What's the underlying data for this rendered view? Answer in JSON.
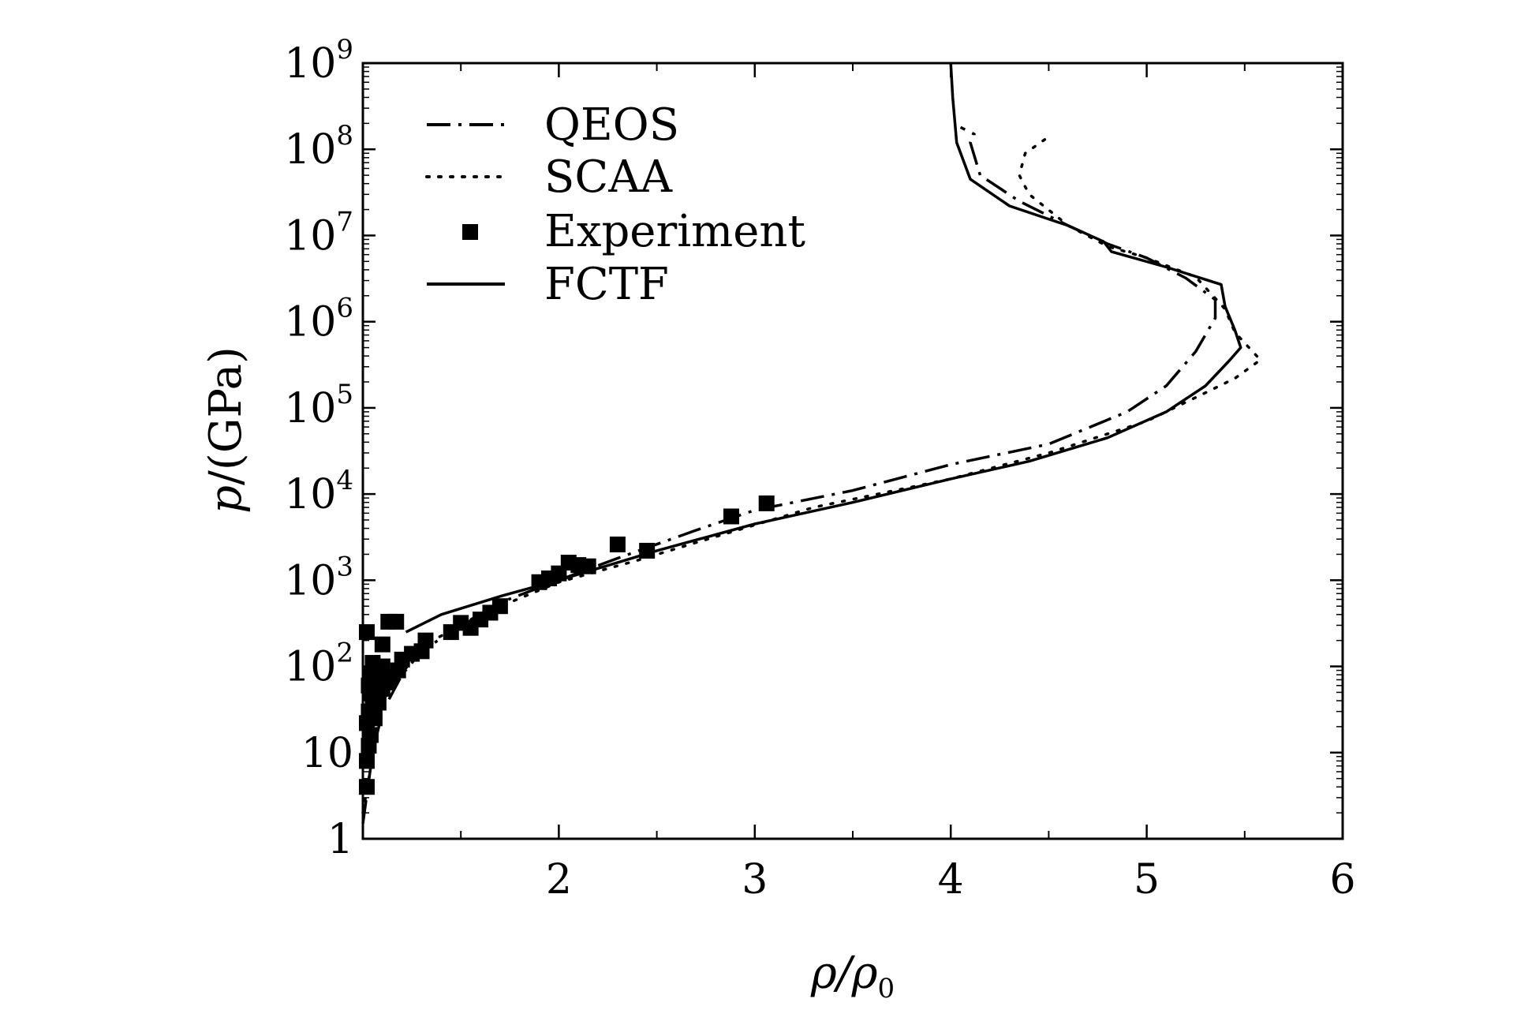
{
  "chart_data": {
    "type": "line",
    "title": "",
    "xlabel": "ρ/ρ0",
    "xlabel_parts": [
      "ρ/ρ",
      "0"
    ],
    "ylabel": "p/(GPa)",
    "ylabel_parts": [
      "p",
      "/(GPa)"
    ],
    "xlim": [
      1,
      6
    ],
    "ylim": [
      1,
      1000000000
    ],
    "yscale": "log",
    "x_ticks": [
      {
        "value": 2,
        "label": "2"
      },
      {
        "value": 3,
        "label": "3"
      },
      {
        "value": 4,
        "label": "4"
      },
      {
        "value": 5,
        "label": "5"
      },
      {
        "value": 6,
        "label": "6"
      }
    ],
    "y_ticks": [
      {
        "value": 1,
        "label": "1",
        "base": "1",
        "exp": ""
      },
      {
        "value": 10,
        "label": "10",
        "base": "10",
        "exp": ""
      },
      {
        "value": 100,
        "label": "10^2",
        "base": "10",
        "exp": "2"
      },
      {
        "value": 1000,
        "label": "10^3",
        "base": "10",
        "exp": "3"
      },
      {
        "value": 10000,
        "label": "10^4",
        "base": "10",
        "exp": "4"
      },
      {
        "value": 100000,
        "label": "10^5",
        "base": "10",
        "exp": "5"
      },
      {
        "value": 1000000,
        "label": "10^6",
        "base": "10",
        "exp": "6"
      },
      {
        "value": 10000000,
        "label": "10^7",
        "base": "10",
        "exp": "7"
      },
      {
        "value": 100000000,
        "label": "10^8",
        "base": "10",
        "exp": "8"
      },
      {
        "value": 1000000000,
        "label": "10^9",
        "base": "10",
        "exp": "9"
      }
    ],
    "legend_position": "top-left",
    "series": [
      {
        "name": "QEOS",
        "style": "dash-dot",
        "points": [
          [
            1.0,
            1.5
          ],
          [
            1.05,
            10
          ],
          [
            1.1,
            30
          ],
          [
            1.2,
            80
          ],
          [
            1.3,
            150
          ],
          [
            1.5,
            300
          ],
          [
            1.7,
            550
          ],
          [
            2.0,
            1000
          ],
          [
            2.3,
            1800
          ],
          [
            2.7,
            3800
          ],
          [
            3.0,
            6500
          ],
          [
            3.5,
            11000
          ],
          [
            4.0,
            22000
          ],
          [
            4.5,
            38000
          ],
          [
            4.9,
            90000
          ],
          [
            5.1,
            180000
          ],
          [
            5.25,
            450000
          ],
          [
            5.35,
            1100000
          ],
          [
            5.35,
            1800000
          ],
          [
            5.2,
            3200000
          ],
          [
            5.0,
            5500000
          ],
          [
            4.8,
            8000000
          ],
          [
            4.6,
            13000000
          ],
          [
            4.35,
            25000000
          ],
          [
            4.15,
            50000000
          ],
          [
            4.1,
            120000000
          ],
          [
            4.12,
            150000000
          ],
          [
            4.05,
            180000000
          ]
        ]
      },
      {
        "name": "SCAA",
        "style": "dotted",
        "points": [
          [
            1.0,
            2
          ],
          [
            1.1,
            40
          ],
          [
            1.3,
            170
          ],
          [
            1.6,
            400
          ],
          [
            2.0,
            950
          ],
          [
            2.4,
            1700
          ],
          [
            2.8,
            3200
          ],
          [
            3.3,
            7000
          ],
          [
            4.0,
            15000
          ],
          [
            4.5,
            30000
          ],
          [
            5.0,
            70000
          ],
          [
            5.3,
            150000
          ],
          [
            5.45,
            220000
          ],
          [
            5.58,
            360000
          ],
          [
            5.45,
            750000
          ],
          [
            5.4,
            1400000
          ],
          [
            5.25,
            3300000
          ],
          [
            5.0,
            5500000
          ],
          [
            4.8,
            7500000
          ],
          [
            4.6,
            13000000
          ],
          [
            4.4,
            30000000
          ],
          [
            4.35,
            50000000
          ],
          [
            4.38,
            90000000
          ],
          [
            4.5,
            140000000
          ]
        ]
      },
      {
        "name": "FCTF",
        "style": "solid",
        "points": [
          [
            1.22,
            250
          ],
          [
            1.4,
            400
          ],
          [
            1.7,
            650
          ],
          [
            2.0,
            1000
          ],
          [
            2.5,
            2200
          ],
          [
            3.0,
            4500
          ],
          [
            3.5,
            8000
          ],
          [
            4.0,
            15000
          ],
          [
            4.4,
            24000
          ],
          [
            4.8,
            45000
          ],
          [
            5.1,
            90000
          ],
          [
            5.3,
            180000
          ],
          [
            5.42,
            350000
          ],
          [
            5.48,
            500000
          ],
          [
            5.45,
            800000
          ],
          [
            5.4,
            1500000
          ],
          [
            5.38,
            2700000
          ],
          [
            5.1,
            4300000
          ],
          [
            4.82,
            6500000
          ],
          [
            4.78,
            8500000
          ],
          [
            4.6,
            13000000
          ],
          [
            4.3,
            22000000
          ],
          [
            4.1,
            45000000
          ],
          [
            4.03,
            120000000
          ],
          [
            4.01,
            400000000
          ],
          [
            4.0,
            1000000000
          ]
        ]
      },
      {
        "name": "Experiment",
        "style": "square-marker",
        "points": [
          [
            1.02,
            4
          ],
          [
            1.02,
            8
          ],
          [
            1.03,
            12
          ],
          [
            1.04,
            16
          ],
          [
            1.02,
            22
          ],
          [
            1.06,
            25
          ],
          [
            1.03,
            30
          ],
          [
            1.05,
            35
          ],
          [
            1.08,
            38
          ],
          [
            1.06,
            45
          ],
          [
            1.04,
            50
          ],
          [
            1.1,
            55
          ],
          [
            1.03,
            60
          ],
          [
            1.12,
            65
          ],
          [
            1.06,
            70
          ],
          [
            1.14,
            75
          ],
          [
            1.04,
            80
          ],
          [
            1.08,
            85
          ],
          [
            1.18,
            90
          ],
          [
            1.1,
            100
          ],
          [
            1.05,
            110
          ],
          [
            1.2,
            120
          ],
          [
            1.25,
            140
          ],
          [
            1.3,
            150
          ],
          [
            1.32,
            200
          ],
          [
            1.45,
            250
          ],
          [
            1.5,
            320
          ],
          [
            1.55,
            280
          ],
          [
            1.6,
            350
          ],
          [
            1.65,
            420
          ],
          [
            1.7,
            500
          ],
          [
            1.9,
            950
          ],
          [
            1.95,
            1050
          ],
          [
            2.0,
            1200
          ],
          [
            2.05,
            1600
          ],
          [
            2.1,
            1500
          ],
          [
            2.15,
            1450
          ],
          [
            2.3,
            2600
          ],
          [
            2.45,
            2200
          ],
          [
            2.88,
            5500
          ],
          [
            3.06,
            7800
          ],
          [
            1.02,
            250
          ],
          [
            1.1,
            180
          ],
          [
            1.13,
            330
          ],
          [
            1.17,
            330
          ]
        ]
      }
    ]
  }
}
